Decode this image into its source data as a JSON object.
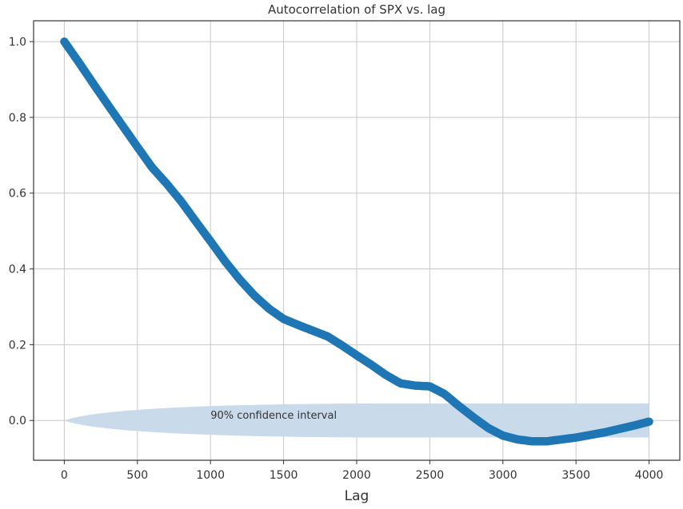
{
  "chart_data": {
    "type": "scatter",
    "title": "Autocorrelation of SPX vs. lag",
    "xlabel": "Lag",
    "ylabel": "",
    "xlim": [
      -210,
      4210
    ],
    "ylim": [
      -0.105,
      1.055
    ],
    "x_ticks": [
      0,
      500,
      1000,
      1500,
      2000,
      2500,
      3000,
      3500,
      4000
    ],
    "x_tick_labels": [
      "0",
      "500",
      "1000",
      "1500",
      "2000",
      "2500",
      "3000",
      "3500",
      "4000"
    ],
    "y_ticks": [
      0.0,
      0.2,
      0.4,
      0.6,
      0.8,
      1.0
    ],
    "y_tick_labels": [
      "0.0",
      "0.2",
      "0.4",
      "0.6",
      "0.8",
      "1.0"
    ],
    "grid": true,
    "series": [
      {
        "color": "#1f77b4",
        "x": [
          0,
          100,
          200,
          300,
          400,
          500,
          600,
          700,
          800,
          900,
          1000,
          1100,
          1200,
          1300,
          1400,
          1500,
          1600,
          1700,
          1800,
          1900,
          2000,
          2100,
          2200,
          2300,
          2400,
          2500,
          2600,
          2700,
          2800,
          2900,
          3000,
          3100,
          3200,
          3300,
          3400,
          3500,
          3600,
          3700,
          3800,
          3900,
          4000
        ],
        "y": [
          1.0,
          0.945,
          0.888,
          0.832,
          0.777,
          0.722,
          0.668,
          0.625,
          0.578,
          0.525,
          0.473,
          0.42,
          0.372,
          0.33,
          0.295,
          0.268,
          0.252,
          0.237,
          0.222,
          0.198,
          0.172,
          0.147,
          0.12,
          0.098,
          0.092,
          0.09,
          0.07,
          0.038,
          0.008,
          -0.02,
          -0.04,
          -0.05,
          -0.055,
          -0.055,
          -0.05,
          -0.045,
          -0.038,
          -0.031,
          -0.022,
          -0.013,
          -0.003
        ]
      }
    ],
    "confidence_band": {
      "x_start": 0,
      "x_end": 4000,
      "upper": 0.045,
      "lower": -0.045,
      "color": "#c9daea"
    },
    "annotations": [
      {
        "text": "90% confidence interval",
        "x": 1000,
        "y": 0.015
      }
    ]
  }
}
